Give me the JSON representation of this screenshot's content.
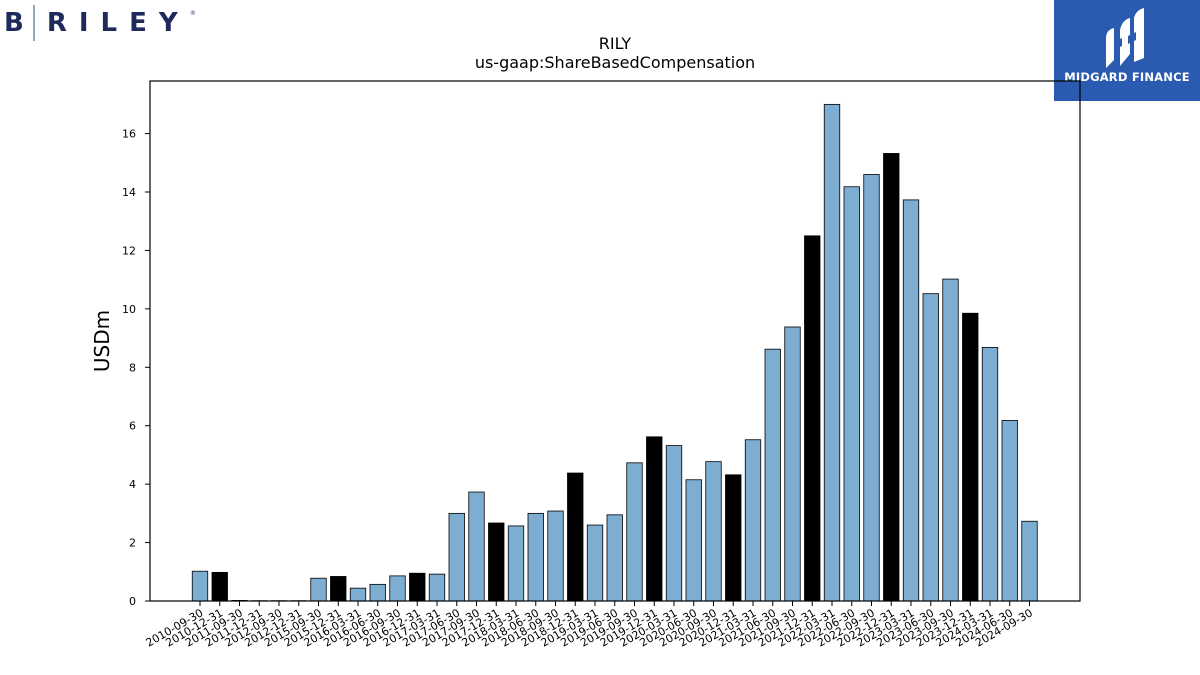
{
  "brand": {
    "logo_letter": "B",
    "logo_name": "RILEY",
    "logo_mark": "®"
  },
  "badge": {
    "label": "MIDGARD FINANCE",
    "background": "#2a5bb0",
    "icon": "midgard-m-icon"
  },
  "chart_data": {
    "type": "bar",
    "title": "RILY",
    "subtitle": "us-gaap:ShareBasedCompensation",
    "xlabel": "",
    "ylabel": "USDm",
    "ylim": [
      0,
      17.8
    ],
    "yticks": [
      0,
      2,
      4,
      6,
      8,
      10,
      12,
      14,
      16
    ],
    "grid": false,
    "colors": {
      "quarter": "#7eadd2",
      "annual": "#000000",
      "edge": "#000000"
    },
    "categories": [
      "2010-09-30",
      "2010-12-31",
      "2011-09-30",
      "2011-12-31",
      "2012-09-30",
      "2012-12-31",
      "2015-09-30",
      "2015-12-31",
      "2016-03-31",
      "2016-06-30",
      "2016-09-30",
      "2016-12-31",
      "2017-03-31",
      "2017-06-30",
      "2017-09-30",
      "2017-12-31",
      "2018-03-31",
      "2018-06-30",
      "2018-09-30",
      "2018-12-31",
      "2019-03-31",
      "2019-06-30",
      "2019-09-30",
      "2019-12-31",
      "2020-03-31",
      "2020-06-30",
      "2020-09-30",
      "2020-12-31",
      "2021-03-31",
      "2021-06-30",
      "2021-09-30",
      "2021-12-31",
      "2022-03-31",
      "2022-06-30",
      "2022-09-30",
      "2022-12-31",
      "2023-03-31",
      "2023-06-30",
      "2023-09-30",
      "2023-12-31",
      "2024-03-31",
      "2024-06-30",
      "2024-09-30"
    ],
    "values": [
      1.02,
      0.98,
      0.02,
      0.01,
      0.01,
      0.01,
      0.78,
      0.84,
      0.44,
      0.57,
      0.86,
      0.95,
      0.92,
      3.0,
      3.73,
      2.67,
      2.57,
      3.0,
      3.08,
      4.38,
      2.6,
      2.95,
      4.73,
      5.62,
      5.32,
      4.15,
      4.77,
      4.32,
      5.52,
      8.62,
      9.38,
      12.5,
      17.0,
      14.18,
      14.6,
      15.32,
      13.73,
      10.52,
      11.02,
      9.85,
      8.68,
      6.18,
      2.73
    ],
    "annual_flags": [
      false,
      true,
      false,
      true,
      false,
      true,
      false,
      true,
      false,
      false,
      false,
      true,
      false,
      false,
      false,
      true,
      false,
      false,
      false,
      true,
      false,
      false,
      false,
      true,
      false,
      false,
      false,
      true,
      false,
      false,
      false,
      true,
      false,
      false,
      false,
      true,
      false,
      false,
      false,
      true,
      false,
      false,
      false
    ]
  }
}
